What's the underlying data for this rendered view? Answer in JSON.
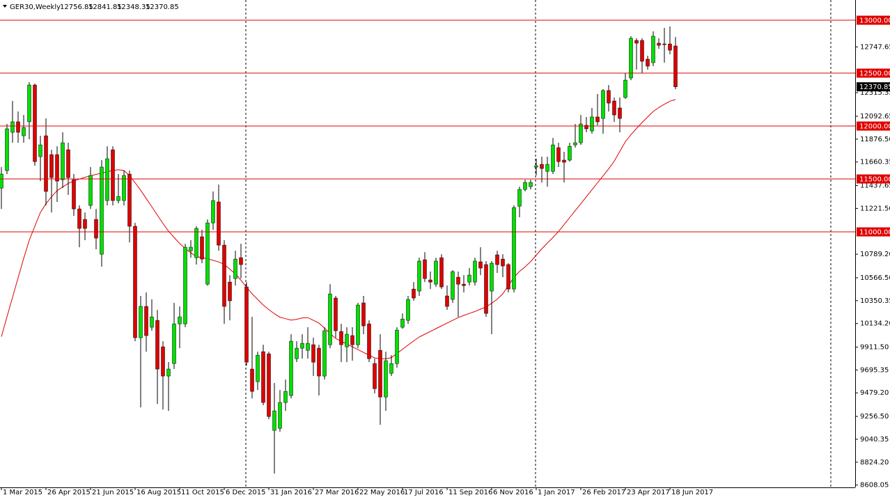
{
  "chart_data": {
    "type": "candlestick",
    "title": "GER30,Weekly",
    "categories": [
      "1 Mar 2015",
      null,
      null,
      null,
      null,
      null,
      null,
      null,
      "26 Apr 2015",
      null,
      null,
      null,
      null,
      null,
      null,
      null,
      "21 Jun 2015",
      null,
      null,
      null,
      null,
      null,
      null,
      null,
      "16 Aug 2015",
      null,
      null,
      null,
      null,
      null,
      null,
      null,
      "11 Oct 2015",
      null,
      null,
      null,
      null,
      null,
      null,
      null,
      "6 Dec 2015",
      null,
      null,
      null,
      null,
      null,
      null,
      null,
      "31 Jan 2016",
      null,
      null,
      null,
      null,
      null,
      null,
      null,
      "27 Mar 2016",
      null,
      null,
      null,
      null,
      null,
      null,
      null,
      "22 May 2016",
      null,
      null,
      null,
      null,
      null,
      null,
      null,
      "17 Jul 2016",
      null,
      null,
      null,
      null,
      null,
      null,
      null,
      "11 Sep 2016",
      null,
      null,
      null,
      null,
      null,
      null,
      null,
      "6 Nov 2016",
      null,
      null,
      null,
      null,
      null,
      null,
      null,
      "1 Jan 2017",
      null,
      null,
      null,
      null,
      null,
      null,
      null,
      "26 Feb 2017",
      null,
      null,
      null,
      null,
      null,
      null,
      null,
      "23 Apr 2017",
      null,
      null,
      null,
      null,
      null,
      null,
      null,
      "18 Jun 2017",
      null
    ],
    "open": [
      11414,
      11579,
      11941,
      12040,
      11908,
      12040,
      12388,
      11711,
      11908,
      11730,
      11730,
      11493,
      11776,
      11493,
      11217,
      11118,
      11250,
      11118,
      10789,
      11296,
      11776,
      11296,
      11296,
      11546,
      11053,
      10000,
      10296,
      10099,
      10164,
      9914,
      9638,
      9756,
      10131,
      10131,
      10822,
      10756,
      10954,
      10506,
      11085,
      11283,
      10875,
      10526,
      10559,
      10756,
      10480,
      9704,
      9585,
      9868,
      9848,
      9125,
      9144,
      9388,
      9454,
      9802,
      9901,
      9881,
      9934,
      9901,
      9638,
      9934,
      10375,
      10059,
      9914,
      10020,
      9934,
      10329,
      10131,
      9756,
      9881,
      9440,
      9664,
      9756,
      10099,
      10164,
      10460,
      10441,
      10737,
      10546,
      10506,
      10756,
      10395,
      10362,
      10572,
      10506,
      10526,
      10526,
      10717,
      10691,
      10441,
      10783,
      10743,
      10691,
      10460,
      11243,
      11401,
      11428,
      11612,
      11638,
      11572,
      11572,
      11796,
      11678,
      11678,
      11822,
      11842,
      12007,
      11954,
      12086,
      12072,
      12336,
      12237,
      12171,
      12270,
      12454,
      12809,
      12809,
      12632,
      12599,
      12783,
      12776,
      12776,
      12756.85
    ],
    "high": [
      11612,
      12020,
      12237,
      12138,
      12105,
      12415,
      12401,
      11908,
      12072,
      11776,
      11809,
      11941,
      11842,
      11546,
      11250,
      11184,
      11612,
      11217,
      11678,
      11809,
      11809,
      11546,
      11579,
      11579,
      11085,
      10395,
      10428,
      10362,
      10263,
      9967,
      9770,
      10329,
      10296,
      10888,
      10921,
      11053,
      11020,
      11118,
      11382,
      11447,
      10921,
      10592,
      10822,
      10888,
      10526,
      10197,
      9868,
      9934,
      9868,
      9572,
      9506,
      9605,
      10033,
      9967,
      10033,
      10099,
      10000,
      9934,
      10099,
      10506,
      10395,
      10131,
      10099,
      10099,
      10329,
      10395,
      10164,
      9802,
      10033,
      9868,
      9835,
      10099,
      10230,
      10395,
      10526,
      10756,
      10809,
      10625,
      10756,
      10789,
      10493,
      10638,
      10625,
      10592,
      10658,
      10756,
      10855,
      10724,
      10724,
      10822,
      10789,
      10704,
      11250,
      11428,
      11493,
      11493,
      11691,
      11711,
      11711,
      11888,
      11842,
      11757,
      11842,
      12020,
      12105,
      12086,
      12171,
      12303,
      12349,
      12388,
      12270,
      12270,
      12500,
      12849,
      12829,
      12829,
      12665,
      12895,
      12829,
      12928,
      12941,
      12841.85
    ],
    "low": [
      11217,
      11546,
      11842,
      11842,
      11842,
      11875,
      11625,
      11480,
      11250,
      11184,
      11283,
      11414,
      11349,
      11151,
      10855,
      10921,
      11217,
      10835,
      10671,
      11250,
      11250,
      11270,
      11250,
      10901,
      9967,
      9342,
      9868,
      10066,
      9375,
      9322,
      9309,
      9704,
      9901,
      10099,
      10756,
      10691,
      10704,
      10493,
      11020,
      10822,
      10131,
      10164,
      10493,
      10559,
      9737,
      9427,
      9506,
      9362,
      9230,
      8717,
      9112,
      9309,
      9427,
      9769,
      9802,
      9802,
      9638,
      9454,
      9605,
      9901,
      10000,
      9769,
      9769,
      9783,
      9901,
      10033,
      9769,
      9473,
      9177,
      9309,
      9638,
      9717,
      10085,
      10131,
      10349,
      10395,
      10526,
      10460,
      10480,
      10460,
      10263,
      10329,
      10197,
      10428,
      10493,
      10493,
      10592,
      10197,
      10033,
      10612,
      10572,
      10428,
      10428,
      11138,
      11382,
      11401,
      11533,
      11467,
      11428,
      11546,
      11612,
      11467,
      11664,
      11796,
      11822,
      11941,
      11928,
      12007,
      11928,
      12138,
      12040,
      11941,
      12257,
      12434,
      12533,
      12500,
      12533,
      12566,
      12730,
      12599,
      12678,
      12348.35
    ],
    "close": [
      11546,
      11974,
      12040,
      11941,
      11987,
      12388,
      11664,
      11822,
      11382,
      11513,
      11480,
      11842,
      11513,
      11217,
      11033,
      11033,
      11533,
      10941,
      11612,
      11691,
      11296,
      11335,
      11533,
      11053,
      10000,
      10296,
      10020,
      10197,
      9704,
      9638,
      9704,
      10131,
      10197,
      10855,
      10855,
      11033,
      10743,
      11085,
      11296,
      10875,
      10296,
      10349,
      10743,
      10691,
      9769,
      9493,
      9835,
      9388,
      9256,
      9309,
      9388,
      9493,
      9967,
      9901,
      9947,
      9947,
      9769,
      9638,
      10066,
      10414,
      10066,
      9934,
      10033,
      9934,
      10309,
      10112,
      9802,
      9519,
      9440,
      9783,
      9756,
      10072,
      10177,
      10362,
      10375,
      10724,
      10559,
      10526,
      10724,
      10480,
      10296,
      10625,
      10506,
      10493,
      10592,
      10724,
      10658,
      10230,
      10704,
      10691,
      10678,
      10460,
      11230,
      11401,
      11467,
      11467,
      11625,
      11599,
      11638,
      11822,
      11664,
      11658,
      11809,
      11842,
      12020,
      11974,
      12086,
      12040,
      12336,
      12217,
      12105,
      12072,
      12434,
      12829,
      12783,
      12612,
      12566,
      12849,
      12763,
      12770,
      12717,
      12370.85
    ],
    "ma": [
      10010,
      10197,
      10382,
      10566,
      10750,
      10921,
      11053,
      11184,
      11266,
      11332,
      11390,
      11424,
      11458,
      11481,
      11499,
      11516,
      11530,
      11543,
      11556,
      11569,
      11581,
      11587,
      11580,
      11530,
      11464,
      11394,
      11315,
      11237,
      11158,
      11079,
      11006,
      10948,
      10890,
      10843,
      10802,
      10767,
      10757,
      10746,
      10731,
      10716,
      10693,
      10648,
      10603,
      10543,
      10477,
      10415,
      10362,
      10309,
      10266,
      10227,
      10194,
      10180,
      10167,
      10174,
      10187,
      10190,
      10164,
      10138,
      10092,
      10039,
      9993,
      9967,
      9941,
      9914,
      9888,
      9861,
      9835,
      9809,
      9802,
      9802,
      9812,
      9852,
      9891,
      9931,
      9970,
      10007,
      10033,
      10059,
      10086,
      10112,
      10138,
      10164,
      10190,
      10211,
      10229,
      10248,
      10270,
      10291,
      10326,
      10365,
      10415,
      10493,
      10572,
      10626,
      10670,
      10719,
      10780,
      10840,
      10895,
      10947,
      11003,
      11069,
      11135,
      11200,
      11266,
      11332,
      11398,
      11464,
      11529,
      11595,
      11668,
      11760,
      11852,
      11919,
      11977,
      12033,
      12086,
      12138,
      12175,
      12206,
      12235,
      12250
    ],
    "up_color": "#00e000",
    "down_color": "#e00000",
    "ma_color": "#e00000",
    "level_color": "#e00000",
    "levels": [
      {
        "value": 13000,
        "label": "13000.00"
      },
      {
        "value": 12500,
        "label": "12500.00"
      },
      {
        "value": 12000,
        "label": "12000.00"
      },
      {
        "value": 11500,
        "label": "11500.00"
      },
      {
        "value": 11000,
        "label": "11000.00"
      }
    ],
    "ylim": [
      8586,
      13191
    ],
    "yticks": [
      {
        "value": 12747.65,
        "label": "12747.65"
      },
      {
        "value": 12315.35,
        "label": "12315.35"
      },
      {
        "value": 12092.65,
        "label": "12092.65"
      },
      {
        "value": 11876.5,
        "label": "11876.50"
      },
      {
        "value": 11660.35,
        "label": "11660.35"
      },
      {
        "value": 11437.65,
        "label": "11437.65"
      },
      {
        "value": 11221.5,
        "label": "11221.50"
      },
      {
        "value": 10789.2,
        "label": "10789.20"
      },
      {
        "value": 10566.5,
        "label": "10566.50"
      },
      {
        "value": 10350.35,
        "label": "10350.35"
      },
      {
        "value": 10134.2,
        "label": "10134.20"
      },
      {
        "value": 9911.5,
        "label": "9911.50"
      },
      {
        "value": 9695.35,
        "label": "9695.35"
      },
      {
        "value": 9479.2,
        "label": "9479.20"
      },
      {
        "value": 9256.5,
        "label": "9256.50"
      },
      {
        "value": 9040.35,
        "label": "9040.35"
      },
      {
        "value": 8824.2,
        "label": "8824.20"
      },
      {
        "value": 8608.05,
        "label": "8608.05"
      }
    ]
  }
}
